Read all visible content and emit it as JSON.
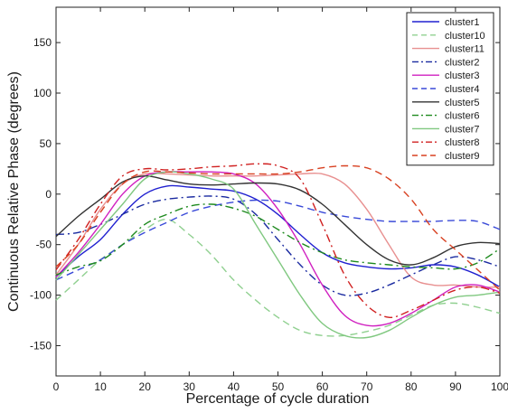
{
  "chart_data": {
    "type": "line",
    "title": "",
    "xlabel": "Percentage of cycle duration",
    "ylabel": "Continuous Relative Phase (degrees)",
    "xlim": [
      0,
      100
    ],
    "ylim": [
      -180,
      185
    ],
    "xticks": [
      0,
      10,
      20,
      30,
      40,
      50,
      60,
      70,
      80,
      90,
      100
    ],
    "yticks": [
      -150,
      -100,
      -50,
      0,
      50,
      100,
      150
    ],
    "grid": false,
    "legend_position": "top-right",
    "series": [
      {
        "name": "cluster1",
        "color": "#2020d0",
        "dash": "solid",
        "x": [
          0,
          5,
          10,
          15,
          20,
          25,
          30,
          35,
          40,
          45,
          50,
          55,
          60,
          65,
          70,
          75,
          80,
          85,
          90,
          95,
          100
        ],
        "y": [
          -82,
          -62,
          -45,
          -20,
          0,
          8,
          7,
          5,
          3,
          -5,
          -20,
          -40,
          -58,
          -68,
          -72,
          -74,
          -73,
          -70,
          -72,
          -80,
          -92
        ]
      },
      {
        "name": "cluster10",
        "color": "#90d090",
        "dash": "dash",
        "x": [
          0,
          5,
          10,
          15,
          20,
          25,
          30,
          35,
          40,
          45,
          50,
          55,
          60,
          65,
          70,
          75,
          80,
          85,
          90,
          95,
          100
        ],
        "y": [
          -105,
          -85,
          -65,
          -50,
          -35,
          -25,
          -40,
          -60,
          -85,
          -105,
          -122,
          -135,
          -140,
          -140,
          -136,
          -130,
          -120,
          -110,
          -108,
          -112,
          -118
        ]
      },
      {
        "name": "cluster11",
        "color": "#e89090",
        "dash": "solid",
        "x": [
          0,
          5,
          10,
          15,
          20,
          25,
          30,
          35,
          40,
          45,
          50,
          55,
          60,
          65,
          70,
          75,
          80,
          85,
          90,
          95,
          100
        ],
        "y": [
          -80,
          -50,
          -15,
          10,
          20,
          20,
          19,
          18,
          18,
          18,
          19,
          20,
          20,
          10,
          -15,
          -50,
          -82,
          -90,
          -90,
          -92,
          -92
        ]
      },
      {
        "name": "cluster2",
        "color": "#1a2aa0",
        "dash": "dashdot",
        "x": [
          0,
          5,
          10,
          15,
          20,
          25,
          30,
          35,
          40,
          45,
          50,
          55,
          60,
          65,
          70,
          75,
          80,
          85,
          90,
          95,
          100
        ],
        "y": [
          -40,
          -38,
          -30,
          -20,
          -10,
          -5,
          -3,
          -2,
          -5,
          -20,
          -45,
          -70,
          -90,
          -100,
          -98,
          -90,
          -80,
          -70,
          -62,
          -65,
          -72
        ]
      },
      {
        "name": "cluster3",
        "color": "#d020c0",
        "dash": "solid",
        "x": [
          0,
          5,
          10,
          15,
          20,
          25,
          30,
          35,
          40,
          45,
          50,
          55,
          60,
          65,
          70,
          75,
          80,
          85,
          90,
          95,
          100
        ],
        "y": [
          -82,
          -58,
          -30,
          0,
          18,
          22,
          22,
          22,
          20,
          10,
          -15,
          -50,
          -90,
          -120,
          -130,
          -128,
          -118,
          -105,
          -92,
          -90,
          -97
        ]
      },
      {
        "name": "cluster4",
        "color": "#3a4ad8",
        "dash": "dash",
        "x": [
          0,
          5,
          10,
          15,
          20,
          25,
          30,
          35,
          40,
          45,
          50,
          55,
          60,
          65,
          70,
          75,
          80,
          85,
          90,
          95,
          100
        ],
        "y": [
          -85,
          -75,
          -65,
          -50,
          -38,
          -28,
          -18,
          -12,
          -8,
          -6,
          -7,
          -12,
          -18,
          -22,
          -25,
          -27,
          -27,
          -27,
          -26,
          -27,
          -35
        ]
      },
      {
        "name": "cluster5",
        "color": "#333333",
        "dash": "solid",
        "x": [
          0,
          5,
          10,
          15,
          20,
          25,
          30,
          35,
          40,
          45,
          50,
          55,
          60,
          65,
          70,
          75,
          80,
          85,
          90,
          95,
          100
        ],
        "y": [
          -42,
          -22,
          -5,
          12,
          18,
          14,
          10,
          9,
          10,
          11,
          10,
          4,
          -10,
          -30,
          -50,
          -65,
          -70,
          -63,
          -52,
          -48,
          -49
        ]
      },
      {
        "name": "cluster6",
        "color": "#1e8a1e",
        "dash": "dashdot",
        "x": [
          0,
          5,
          10,
          15,
          20,
          25,
          30,
          35,
          40,
          45,
          50,
          55,
          60,
          65,
          70,
          75,
          80,
          85,
          90,
          95,
          100
        ],
        "y": [
          -80,
          -72,
          -66,
          -50,
          -30,
          -20,
          -12,
          -10,
          -14,
          -22,
          -35,
          -48,
          -58,
          -65,
          -68,
          -70,
          -72,
          -73,
          -74,
          -68,
          -54
        ]
      },
      {
        "name": "cluster7",
        "color": "#80c880",
        "dash": "solid",
        "x": [
          0,
          5,
          10,
          15,
          20,
          25,
          30,
          35,
          40,
          45,
          50,
          55,
          60,
          65,
          70,
          75,
          80,
          85,
          90,
          95,
          100
        ],
        "y": [
          -85,
          -60,
          -35,
          -10,
          15,
          22,
          20,
          15,
          5,
          -30,
          -65,
          -100,
          -128,
          -140,
          -142,
          -135,
          -122,
          -110,
          -102,
          -100,
          -97
        ]
      },
      {
        "name": "cluster8",
        "color": "#d02020",
        "dash": "dashdot",
        "x": [
          0,
          5,
          10,
          15,
          20,
          25,
          30,
          35,
          40,
          45,
          50,
          55,
          60,
          65,
          70,
          75,
          80,
          85,
          90,
          95,
          100
        ],
        "y": [
          -75,
          -45,
          -10,
          18,
          25,
          24,
          25,
          27,
          28,
          30,
          28,
          15,
          -30,
          -80,
          -110,
          -122,
          -115,
          -105,
          -95,
          -92,
          -98
        ]
      },
      {
        "name": "cluster9",
        "color": "#d84020",
        "dash": "dash",
        "x": [
          0,
          5,
          10,
          15,
          20,
          25,
          30,
          35,
          40,
          45,
          50,
          55,
          60,
          65,
          70,
          75,
          80,
          85,
          90,
          95,
          100
        ],
        "y": [
          -72,
          -50,
          -18,
          10,
          22,
          22,
          21,
          20,
          20,
          20,
          20,
          22,
          26,
          28,
          26,
          15,
          -5,
          -35,
          -55,
          -75,
          -95
        ]
      }
    ]
  }
}
